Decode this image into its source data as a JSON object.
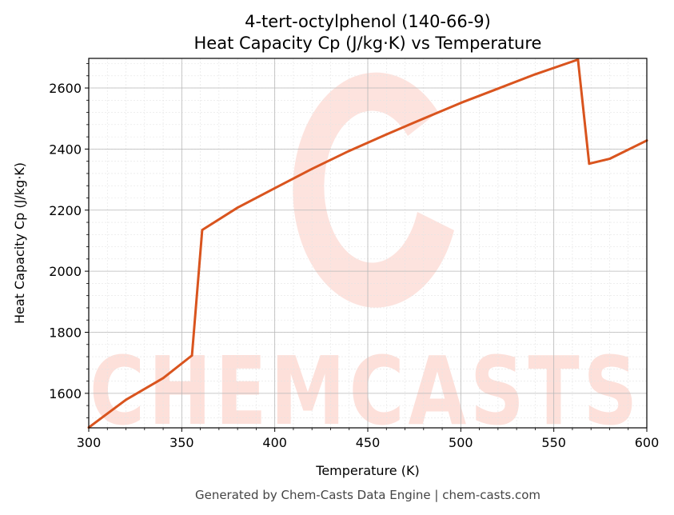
{
  "chart_data": {
    "type": "line",
    "title_line1": "4-tert-octylphenol (140-66-9)",
    "title_line2": "Heat Capacity Cp (J/kg·K) vs Temperature",
    "xlabel": "Temperature (K)",
    "ylabel": "Heat Capacity Cp (J/kg·K)",
    "xlim": [
      300,
      600
    ],
    "ylim": [
      1487,
      2697
    ],
    "xticks": [
      "300",
      "350",
      "400",
      "450",
      "500",
      "550",
      "600"
    ],
    "yticks": [
      "1600",
      "1800",
      "2000",
      "2200",
      "2400",
      "2600"
    ],
    "grid": true,
    "series": [
      {
        "color": "#d9541e",
        "x": [
          300,
          320,
          340,
          355.5,
          361,
          380,
          400,
          420,
          440,
          460,
          480,
          500,
          520,
          540,
          563,
          569,
          580,
          600
        ],
        "y": [
          1488,
          1579,
          1650,
          1724,
          2135,
          2208,
          2272,
          2335,
          2394,
          2448,
          2500,
          2551,
          2598,
          2645,
          2693,
          2352,
          2368,
          2428
        ]
      }
    ]
  },
  "watermark": {
    "text": "CHEMCASTS",
    "color": "#fde0da"
  },
  "footer": "Generated by Chem-Casts Data Engine | chem-casts.com"
}
